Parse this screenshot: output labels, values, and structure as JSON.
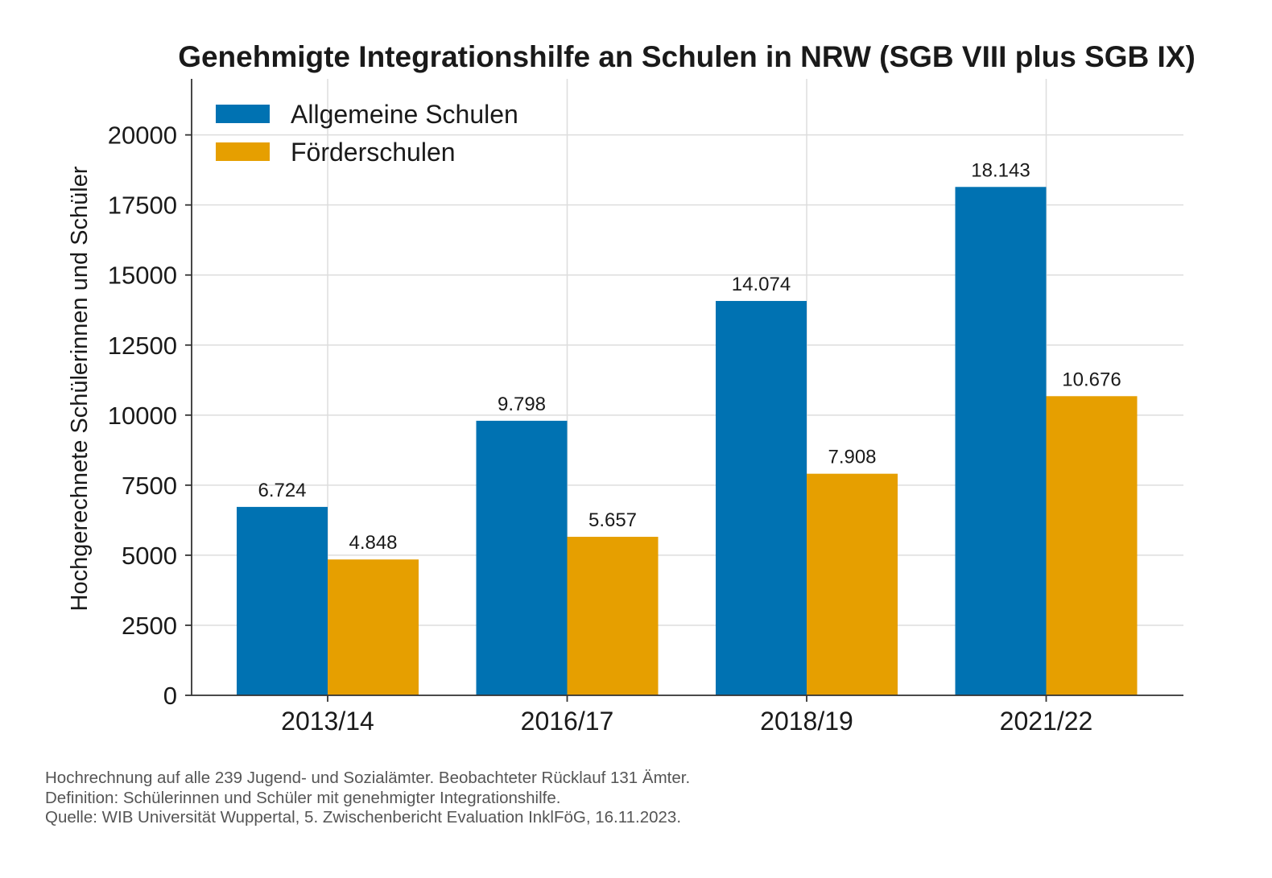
{
  "chart_data": {
    "type": "bar",
    "title": "Genehmigte Integrationshilfe an Schulen in NRW (SGB VIII plus SGB IX)",
    "xlabel": "",
    "ylabel": "Hochgerechnete Schülerinnen und Schüler",
    "categories": [
      "2013/14",
      "2016/17",
      "2018/19",
      "2021/22"
    ],
    "series": [
      {
        "name": "Allgemeine Schulen",
        "color": "#0072b2",
        "values": [
          6724,
          9798,
          14074,
          18143
        ],
        "labels": [
          "6.724",
          "9.798",
          "14.074",
          "18.143"
        ]
      },
      {
        "name": "Förderschulen",
        "color": "#e69f00",
        "values": [
          4848,
          5657,
          7908,
          10676
        ],
        "labels": [
          "4.848",
          "5.657",
          "7.908",
          "10.676"
        ]
      }
    ],
    "ylim": [
      0,
      22000
    ],
    "yticks": [
      0,
      2500,
      5000,
      7500,
      10000,
      12500,
      15000,
      17500,
      20000
    ],
    "grid": true,
    "legend": "top-left"
  },
  "footnotes": [
    "Hochrechnung auf alle 239 Jugend- und Sozialämter. Beobachteter Rücklauf 131 Ämter.",
    "Definition: Schülerinnen und Schüler mit genehmigter Integrationshilfe.",
    "Quelle: WIB Universität Wuppertal, 5. Zwischenbericht Evaluation InklFöG, 16.11.2023."
  ]
}
